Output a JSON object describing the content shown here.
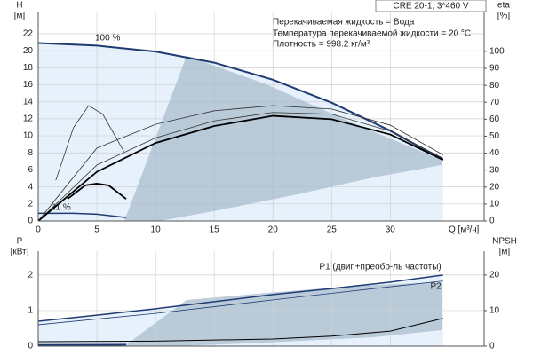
{
  "chart_data": [
    {
      "type": "line",
      "title": "CRE 20-1, 3*460 V",
      "annotations": [
        "Перекачиваемая жидкость = Вода",
        "Температура перекачиваемой жидкости = 20 °C",
        "Плотность = 998.2 кг/м³",
        "100 %",
        "21 %"
      ],
      "xlabel": "Q [м³/ч]",
      "ylabel": [
        "H",
        "[м]"
      ],
      "y2label": [
        "eta",
        "[%]"
      ],
      "xlim": [
        0,
        38
      ],
      "xticks": [
        0,
        5,
        10,
        15,
        20,
        25,
        30
      ],
      "ylim": [
        0,
        24.5
      ],
      "yticks": [
        0,
        2,
        4,
        6,
        8,
        10,
        12,
        14,
        16,
        18,
        20,
        22
      ],
      "y2lim": [
        0,
        123
      ],
      "y2ticks": [
        0,
        10,
        20,
        30,
        40,
        50,
        60,
        70,
        80,
        90,
        100
      ],
      "grid": true,
      "series": [
        {
          "color": "#1f3b73",
          "width": 2,
          "fill": "#e6f1fb",
          "x": [
            0,
            5,
            10,
            15,
            20,
            25,
            30,
            34.5
          ],
          "values": [
            20.9,
            20.6,
            19.9,
            18.6,
            16.6,
            13.9,
            10.6,
            7.2
          ]
        },
        {
          "color": "#1f3b73",
          "width": 1.5,
          "x": [
            0,
            3,
            5,
            7.5
          ],
          "values": [
            0.9,
            0.9,
            0.8,
            0.4
          ]
        },
        {
          "color": "#333333",
          "width": 0.8,
          "axis": "y2",
          "x": [
            1.5,
            3,
            4.3,
            5.5,
            7.3
          ],
          "values": [
            24,
            55,
            68,
            63,
            41
          ]
        },
        {
          "color": "#333333",
          "width": 0.8,
          "axis": "y2",
          "x": [
            0,
            5,
            10,
            15,
            20,
            25,
            30,
            34.5
          ],
          "values": [
            0,
            43,
            57,
            65,
            68,
            66,
            56.5,
            39
          ]
        },
        {
          "color": "#333333",
          "width": 0.8,
          "axis": "y2",
          "x": [
            0,
            5,
            10,
            15,
            20,
            25,
            30,
            34.5
          ],
          "values": [
            0,
            33,
            49,
            59,
            64,
            63,
            53,
            37
          ]
        },
        {
          "color": "#000000",
          "width": 1.8,
          "axis": "y2",
          "x": [
            0,
            5,
            10,
            15,
            20,
            25,
            30,
            34.5
          ],
          "values": [
            0,
            29,
            46,
            56,
            62,
            60,
            51,
            36
          ]
        },
        {
          "color": "#000000",
          "width": 1.8,
          "axis": "y2",
          "x": [
            2.5,
            4,
            5,
            6,
            7.5
          ],
          "values": [
            13,
            21,
            22,
            21,
            13
          ]
        }
      ]
    },
    {
      "type": "line",
      "ylabel": [
        "P",
        "[кВт]"
      ],
      "y2label": [
        "NPSH",
        "[м]"
      ],
      "xlim": [
        0,
        38
      ],
      "xticks": [
        0,
        5,
        10,
        15,
        20,
        25,
        30
      ],
      "xtick_labels": false,
      "ylim": [
        0,
        2.67
      ],
      "yticks": [
        0,
        1,
        2
      ],
      "y2lim": [
        0,
        26.7
      ],
      "y2ticks": [
        0,
        10,
        20
      ],
      "grid": true,
      "series": [
        {
          "name": "P1 (двиг.+преобр-ль частоты)",
          "color": "#1f3b73",
          "width": 1.5,
          "fill": "#e6f1fb",
          "x": [
            0,
            5,
            10,
            15,
            20,
            25,
            30,
            34.5
          ],
          "values": [
            0.7,
            0.87,
            1.05,
            1.25,
            1.45,
            1.62,
            1.8,
            2.0
          ]
        },
        {
          "name": "P2",
          "color": "#1f3b73",
          "width": 0.8,
          "x": [
            0,
            10,
            20,
            30,
            34.5
          ],
          "values": [
            0.6,
            0.92,
            1.3,
            1.67,
            1.83
          ]
        },
        {
          "color": "#1f3b73",
          "width": 2,
          "x": [
            0,
            7.5
          ],
          "values": [
            0.03,
            0.04
          ]
        },
        {
          "color": "#000000",
          "width": 1,
          "axis": "y2",
          "x": [
            0,
            10,
            20,
            25,
            30,
            34.5
          ],
          "values": [
            1.25,
            1.4,
            2,
            2.8,
            4.2,
            7.8
          ]
        }
      ]
    }
  ]
}
